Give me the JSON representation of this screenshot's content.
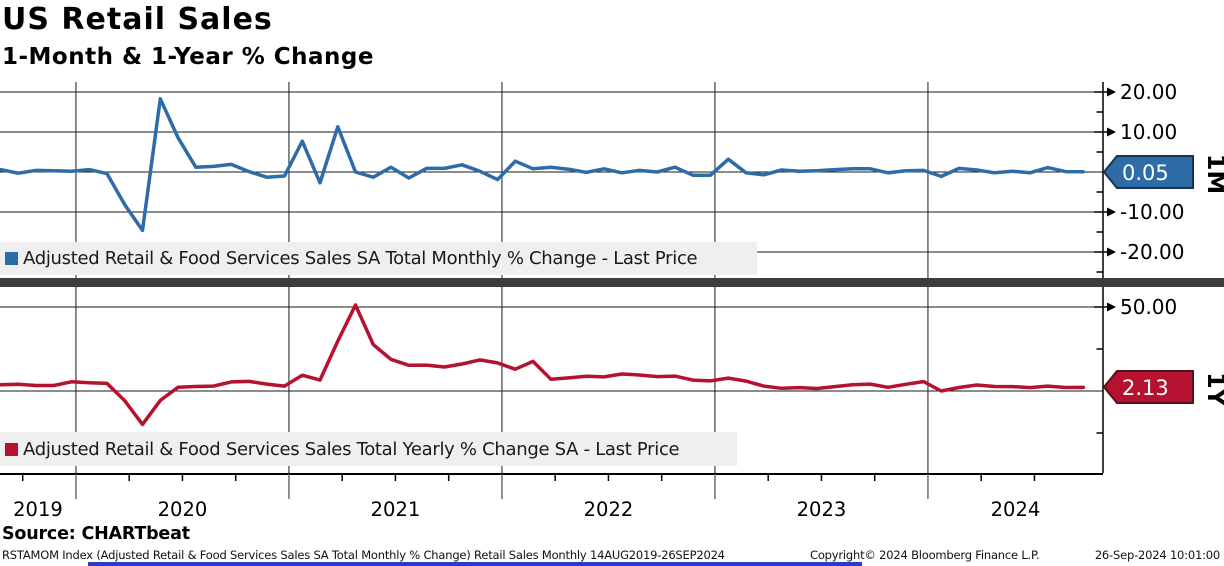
{
  "header": {
    "title": "US Retail Sales",
    "subtitle": "1-Month & 1-Year % Change"
  },
  "colors": {
    "monthly_blue": "#2e6ca8",
    "yearly_red": "#b5122f",
    "divider_gray": "#3d3d3d",
    "legend_bg": "#efefef",
    "bottom_strip_blue": "#2a3cc4"
  },
  "chart_data": [
    {
      "type": "line",
      "panel": "top",
      "legend": "Adjusted Retail & Food Services Sales SA Total Monthly % Change - Last Price",
      "side_label": "1M",
      "last_price": "0.05",
      "last_value": 0.05,
      "color": "#2e6ca8",
      "badge_border": "#17314f",
      "ylim": [
        -26.5,
        22.5
      ],
      "y_ticks": [
        {
          "value": 20,
          "label": "20.00"
        },
        {
          "value": 10,
          "label": "10.00"
        },
        {
          "value": -10,
          "label": "-10.00"
        },
        {
          "value": -20,
          "label": "-20.00"
        }
      ],
      "y_gridlines": [
        20,
        10,
        0,
        -10,
        -20
      ],
      "y_minor": [
        15,
        5,
        -5,
        -15,
        -25
      ],
      "x_start": "Aug 2019",
      "x_end": "Sep 2024",
      "frequency": "monthly",
      "values": [
        0.6,
        -0.3,
        0.4,
        0.3,
        0.2,
        0.6,
        -0.4,
        -8.2,
        -14.6,
        18.3,
        8.6,
        1.2,
        1.4,
        1.9,
        0.1,
        -1.3,
        -1.0,
        7.7,
        -2.7,
        11.3,
        0.0,
        -1.3,
        1.2,
        -1.5,
        0.9,
        0.9,
        1.8,
        0.2,
        -1.9,
        2.7,
        0.8,
        1.2,
        0.7,
        -0.1,
        0.8,
        -0.2,
        0.4,
        0.0,
        1.2,
        -0.8,
        -0.8,
        3.2,
        -0.2,
        -0.7,
        0.5,
        0.2,
        0.3,
        0.6,
        0.8,
        0.8,
        -0.2,
        0.3,
        0.4,
        -1.1,
        0.9,
        0.5,
        -0.2,
        0.2,
        -0.2,
        1.1,
        0.1,
        0.05
      ]
    },
    {
      "type": "line",
      "panel": "bottom",
      "legend": "Adjusted Retail & Food Services Sales Total Yearly % Change SA - Last Price",
      "side_label": "1Y",
      "last_price": "2.13",
      "last_value": 2.13,
      "color": "#b5122f",
      "badge_border": "#55101c",
      "ylim": [
        -48.8,
        61.9
      ],
      "y_ticks": [
        {
          "value": 50,
          "label": "50.00"
        }
      ],
      "y_gridlines": [
        50,
        0
      ],
      "y_minor": [
        25,
        -25
      ],
      "x_start": "Aug 2019",
      "x_end": "Sep 2024",
      "frequency": "monthly",
      "values": [
        3.7,
        4.0,
        3.3,
        3.3,
        5.5,
        4.9,
        4.5,
        -5.8,
        -19.9,
        -5.6,
        2.2,
        2.7,
        2.9,
        5.4,
        5.7,
        4.1,
        2.9,
        9.4,
        6.5,
        29.7,
        51.2,
        27.6,
        18.8,
        15.3,
        15.4,
        14.3,
        16.1,
        18.5,
        16.7,
        13.0,
        17.6,
        7.0,
        7.8,
        8.8,
        8.4,
        10.1,
        9.5,
        8.6,
        8.9,
        6.5,
        6.0,
        7.7,
        5.9,
        2.9,
        1.6,
        2.0,
        1.5,
        2.6,
        3.7,
        4.1,
        2.2,
        4.0,
        5.6,
        0.0,
        2.1,
        3.6,
        2.7,
        2.6,
        2.0,
        2.9,
        2.1,
        2.13
      ]
    }
  ],
  "x_axis": {
    "labels": [
      "2019",
      "2020",
      "2021",
      "2022",
      "2023",
      "2024"
    ]
  },
  "footer": {
    "source": "Source:  CHARTbeat",
    "left": "RSTAMOM Index (Adjusted Retail & Food Services Sales SA Total Monthly % Change) Retail Sales  Monthly 14AUG2019-26SEP2024",
    "copyright": "Copyright© 2024 Bloomberg Finance L.P.",
    "timestamp": "26-Sep-2024 10:01:00"
  }
}
